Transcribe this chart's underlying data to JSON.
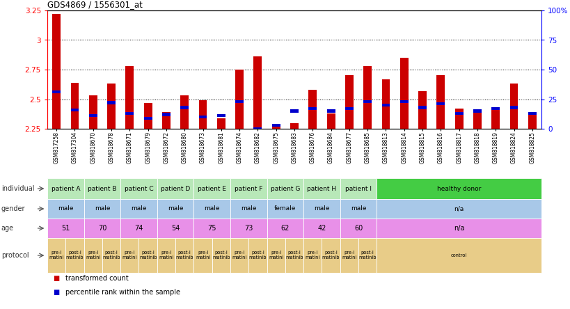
{
  "title": "GDS4869 / 1556301_at",
  "samples": [
    "GSM817258",
    "GSM817304",
    "GSM818670",
    "GSM818678",
    "GSM818671",
    "GSM818679",
    "GSM818672",
    "GSM818680",
    "GSM818673",
    "GSM818681",
    "GSM818674",
    "GSM818682",
    "GSM818675",
    "GSM818683",
    "GSM818676",
    "GSM818684",
    "GSM818677",
    "GSM818685",
    "GSM818813",
    "GSM818814",
    "GSM818815",
    "GSM818816",
    "GSM818817",
    "GSM818818",
    "GSM818819",
    "GSM818824",
    "GSM818825"
  ],
  "red_values": [
    3.22,
    2.64,
    2.53,
    2.63,
    2.78,
    2.47,
    2.39,
    2.53,
    2.49,
    2.34,
    2.75,
    2.86,
    2.27,
    2.3,
    2.58,
    2.38,
    2.7,
    2.78,
    2.67,
    2.85,
    2.57,
    2.7,
    2.42,
    2.41,
    2.41,
    2.63,
    2.37
  ],
  "blue_values": [
    2.56,
    2.41,
    2.36,
    2.47,
    2.38,
    2.34,
    2.37,
    2.43,
    2.35,
    2.36,
    2.48,
    2.25,
    2.28,
    2.4,
    2.42,
    2.4,
    2.42,
    2.48,
    2.45,
    2.48,
    2.43,
    2.46,
    2.38,
    2.4,
    2.42,
    2.43,
    2.38
  ],
  "ymin": 2.25,
  "ymax": 3.25,
  "yticks": [
    2.25,
    2.5,
    2.75,
    3.0,
    3.25
  ],
  "ytick_labels": [
    "2.25",
    "2.5",
    "2.75",
    "3",
    "3.25"
  ],
  "right_yticks": [
    0,
    25,
    50,
    75,
    100
  ],
  "right_ytick_labels": [
    "0",
    "25",
    "50",
    "75",
    "100%"
  ],
  "bar_red": "#cc0000",
  "bar_blue": "#0000cc",
  "legend_red": "transformed count",
  "legend_blue": "percentile rank within the sample",
  "ind_groups": [
    [
      "patient A",
      [
        0,
        1
      ],
      "#b8e8b8"
    ],
    [
      "patient B",
      [
        2,
        3
      ],
      "#b8e8b8"
    ],
    [
      "patient C",
      [
        4,
        5
      ],
      "#b8e8b8"
    ],
    [
      "patient D",
      [
        6,
        7
      ],
      "#b8e8b8"
    ],
    [
      "patient E",
      [
        8,
        9
      ],
      "#b8e8b8"
    ],
    [
      "patient F",
      [
        10,
        11
      ],
      "#b8e8b8"
    ],
    [
      "patient G",
      [
        12,
        13
      ],
      "#b8e8b8"
    ],
    [
      "patient H",
      [
        14,
        15
      ],
      "#b8e8b8"
    ],
    [
      "patient I",
      [
        16,
        17
      ],
      "#b8e8b8"
    ],
    [
      "healthy donor",
      [
        18,
        19,
        20,
        21,
        22,
        23,
        24,
        25,
        26
      ],
      "#44cc44"
    ]
  ],
  "gender_groups": [
    [
      "male",
      [
        0,
        1
      ],
      "#a8c8e8"
    ],
    [
      "male",
      [
        2,
        3
      ],
      "#a8c8e8"
    ],
    [
      "male",
      [
        4,
        5
      ],
      "#a8c8e8"
    ],
    [
      "male",
      [
        6,
        7
      ],
      "#a8c8e8"
    ],
    [
      "male",
      [
        8,
        9
      ],
      "#a8c8e8"
    ],
    [
      "male",
      [
        10,
        11
      ],
      "#a8c8e8"
    ],
    [
      "female",
      [
        12,
        13
      ],
      "#a8c8e8"
    ],
    [
      "male",
      [
        14,
        15
      ],
      "#a8c8e8"
    ],
    [
      "male",
      [
        16,
        17
      ],
      "#a8c8e8"
    ],
    [
      "n/a",
      [
        18,
        19,
        20,
        21,
        22,
        23,
        24,
        25,
        26
      ],
      "#a8c8e8"
    ]
  ],
  "age_groups": [
    [
      "51",
      [
        0,
        1
      ],
      "#e890e8"
    ],
    [
      "70",
      [
        2,
        3
      ],
      "#e890e8"
    ],
    [
      "74",
      [
        4,
        5
      ],
      "#e890e8"
    ],
    [
      "54",
      [
        6,
        7
      ],
      "#e890e8"
    ],
    [
      "75",
      [
        8,
        9
      ],
      "#e890e8"
    ],
    [
      "73",
      [
        10,
        11
      ],
      "#e890e8"
    ],
    [
      "62",
      [
        12,
        13
      ],
      "#e890e8"
    ],
    [
      "42",
      [
        14,
        15
      ],
      "#e890e8"
    ],
    [
      "60",
      [
        16,
        17
      ],
      "#e890e8"
    ],
    [
      "n/a",
      [
        18,
        19,
        20,
        21,
        22,
        23,
        24,
        25,
        26
      ],
      "#e890e8"
    ]
  ],
  "protocol_groups": [
    [
      "pre-I\nmatini",
      [
        0
      ],
      "#e8cc88"
    ],
    [
      "post-I\nmatinib",
      [
        1
      ],
      "#e8cc88"
    ],
    [
      "pre-I\nmatini",
      [
        2
      ],
      "#e8cc88"
    ],
    [
      "post-I\nmatinib",
      [
        3
      ],
      "#e8cc88"
    ],
    [
      "pre-I\nmatini",
      [
        4
      ],
      "#e8cc88"
    ],
    [
      "post-I\nmatinib",
      [
        5
      ],
      "#e8cc88"
    ],
    [
      "pre-I\nmatini",
      [
        6
      ],
      "#e8cc88"
    ],
    [
      "post-I\nmatinib",
      [
        7
      ],
      "#e8cc88"
    ],
    [
      "pre-I\nmatini",
      [
        8
      ],
      "#e8cc88"
    ],
    [
      "post-I\nmatinib",
      [
        9
      ],
      "#e8cc88"
    ],
    [
      "pre-I\nmatini",
      [
        10
      ],
      "#e8cc88"
    ],
    [
      "post-I\nmatinib",
      [
        11
      ],
      "#e8cc88"
    ],
    [
      "pre-I\nmatini",
      [
        12
      ],
      "#e8cc88"
    ],
    [
      "post-I\nmatinib",
      [
        13
      ],
      "#e8cc88"
    ],
    [
      "pre-I\nmatini",
      [
        14
      ],
      "#e8cc88"
    ],
    [
      "post-I\nmatinib",
      [
        15
      ],
      "#e8cc88"
    ],
    [
      "pre-I\nmatini",
      [
        16
      ],
      "#e8cc88"
    ],
    [
      "post-I\nmatinib",
      [
        17
      ],
      "#e8cc88"
    ],
    [
      "control",
      [
        18,
        19,
        20,
        21,
        22,
        23,
        24,
        25,
        26
      ],
      "#e8cc88"
    ]
  ]
}
